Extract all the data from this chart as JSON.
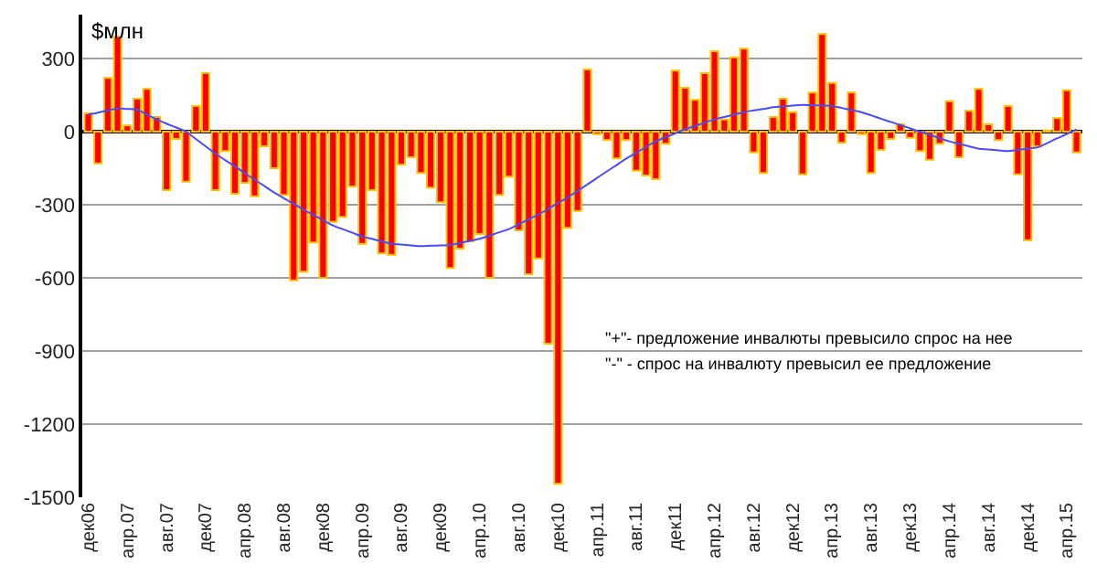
{
  "chart_data": {
    "type": "bar",
    "ylabel": "$млн",
    "categories": [
      "дек06",
      null,
      null,
      null,
      "апр.07",
      null,
      null,
      null,
      "авг.07",
      null,
      null,
      null,
      "дек07",
      null,
      null,
      null,
      "апр.08",
      null,
      null,
      null,
      "авг.08",
      null,
      null,
      null,
      "дек08",
      null,
      null,
      null,
      "апр.09",
      null,
      null,
      null,
      "авг.09",
      null,
      null,
      null,
      "дек09",
      null,
      null,
      null,
      "апр.10",
      null,
      null,
      null,
      "авг.10",
      null,
      null,
      null,
      "дек10",
      null,
      null,
      null,
      "апр.11",
      null,
      null,
      null,
      "авг.11",
      null,
      null,
      null,
      "дек11",
      null,
      null,
      null,
      "апр.12",
      null,
      null,
      null,
      "авг.12",
      null,
      null,
      null,
      "дек12",
      null,
      null,
      null,
      "апр.13",
      null,
      null,
      null,
      "авг.13",
      null,
      null,
      null,
      "дек13",
      null,
      null,
      null,
      "апр.14",
      null,
      null,
      null,
      "авг.14",
      null,
      null,
      null,
      "дек14",
      null,
      null,
      null,
      "апр.15",
      null
    ],
    "series": [
      {
        "color": "#ff0000",
        "values": [
          75,
          -130,
          220,
          390,
          25,
          135,
          175,
          60,
          -240,
          -30,
          -205,
          105,
          240,
          -240,
          -80,
          -255,
          -210,
          -265,
          -60,
          -150,
          -260,
          -610,
          -575,
          -455,
          -600,
          -370,
          -350,
          -225,
          -460,
          -240,
          -500,
          -505,
          -135,
          -105,
          -170,
          -230,
          -290,
          -560,
          -480,
          -450,
          -420,
          -600,
          -260,
          -185,
          -405,
          -585,
          -520,
          -870,
          -1445,
          -395,
          -325,
          255,
          -10,
          -35,
          -110,
          -35,
          -160,
          -180,
          -195,
          -50,
          250,
          180,
          130,
          240,
          330,
          50,
          305,
          340,
          -85,
          -170,
          60,
          135,
          80,
          -175,
          160,
          400,
          200,
          -45,
          160,
          -10,
          -170,
          -75,
          -30,
          30,
          -25,
          -80,
          -115,
          -50,
          125,
          -105,
          85,
          175,
          30,
          -35,
          105,
          -175,
          -445,
          -60,
          5,
          55,
          170,
          -85
        ]
      },
      {
        "type": "line",
        "color": "#4a4aff",
        "values": [
          70,
          78,
          87,
          95,
          93,
          90,
          70,
          50,
          33,
          17,
          0,
          -30,
          -60,
          -90,
          -117,
          -143,
          -170,
          -197,
          -223,
          -250,
          -273,
          -297,
          -320,
          -342,
          -363,
          -385,
          -400,
          -415,
          -430,
          -440,
          -450,
          -460,
          -463,
          -467,
          -470,
          -468,
          -467,
          -465,
          -457,
          -448,
          -440,
          -427,
          -413,
          -400,
          -380,
          -360,
          -340,
          -317,
          -293,
          -270,
          -243,
          -217,
          -190,
          -163,
          -137,
          -110,
          -87,
          -63,
          -40,
          -23,
          -7,
          10,
          23,
          37,
          50,
          60,
          70,
          80,
          87,
          93,
          100,
          103,
          107,
          110,
          108,
          107,
          105,
          97,
          88,
          80,
          67,
          53,
          40,
          27,
          13,
          0,
          -13,
          -27,
          -40,
          -50,
          -60,
          -70,
          -73,
          -77,
          -80,
          -75,
          -70,
          -65,
          -47,
          -28,
          -10,
          10
        ]
      }
    ],
    "ylim": [
      -1500,
      480
    ],
    "yticks": [
      -1500,
      -1200,
      -900,
      -600,
      -300,
      0,
      300
    ],
    "grid": "y",
    "marker": "none",
    "annotations": [
      "\"+\"- предложение инвалюты превысило спрос на нее",
      "\"-\" - спрос на инвалюту превысил ее предложение"
    ]
  }
}
